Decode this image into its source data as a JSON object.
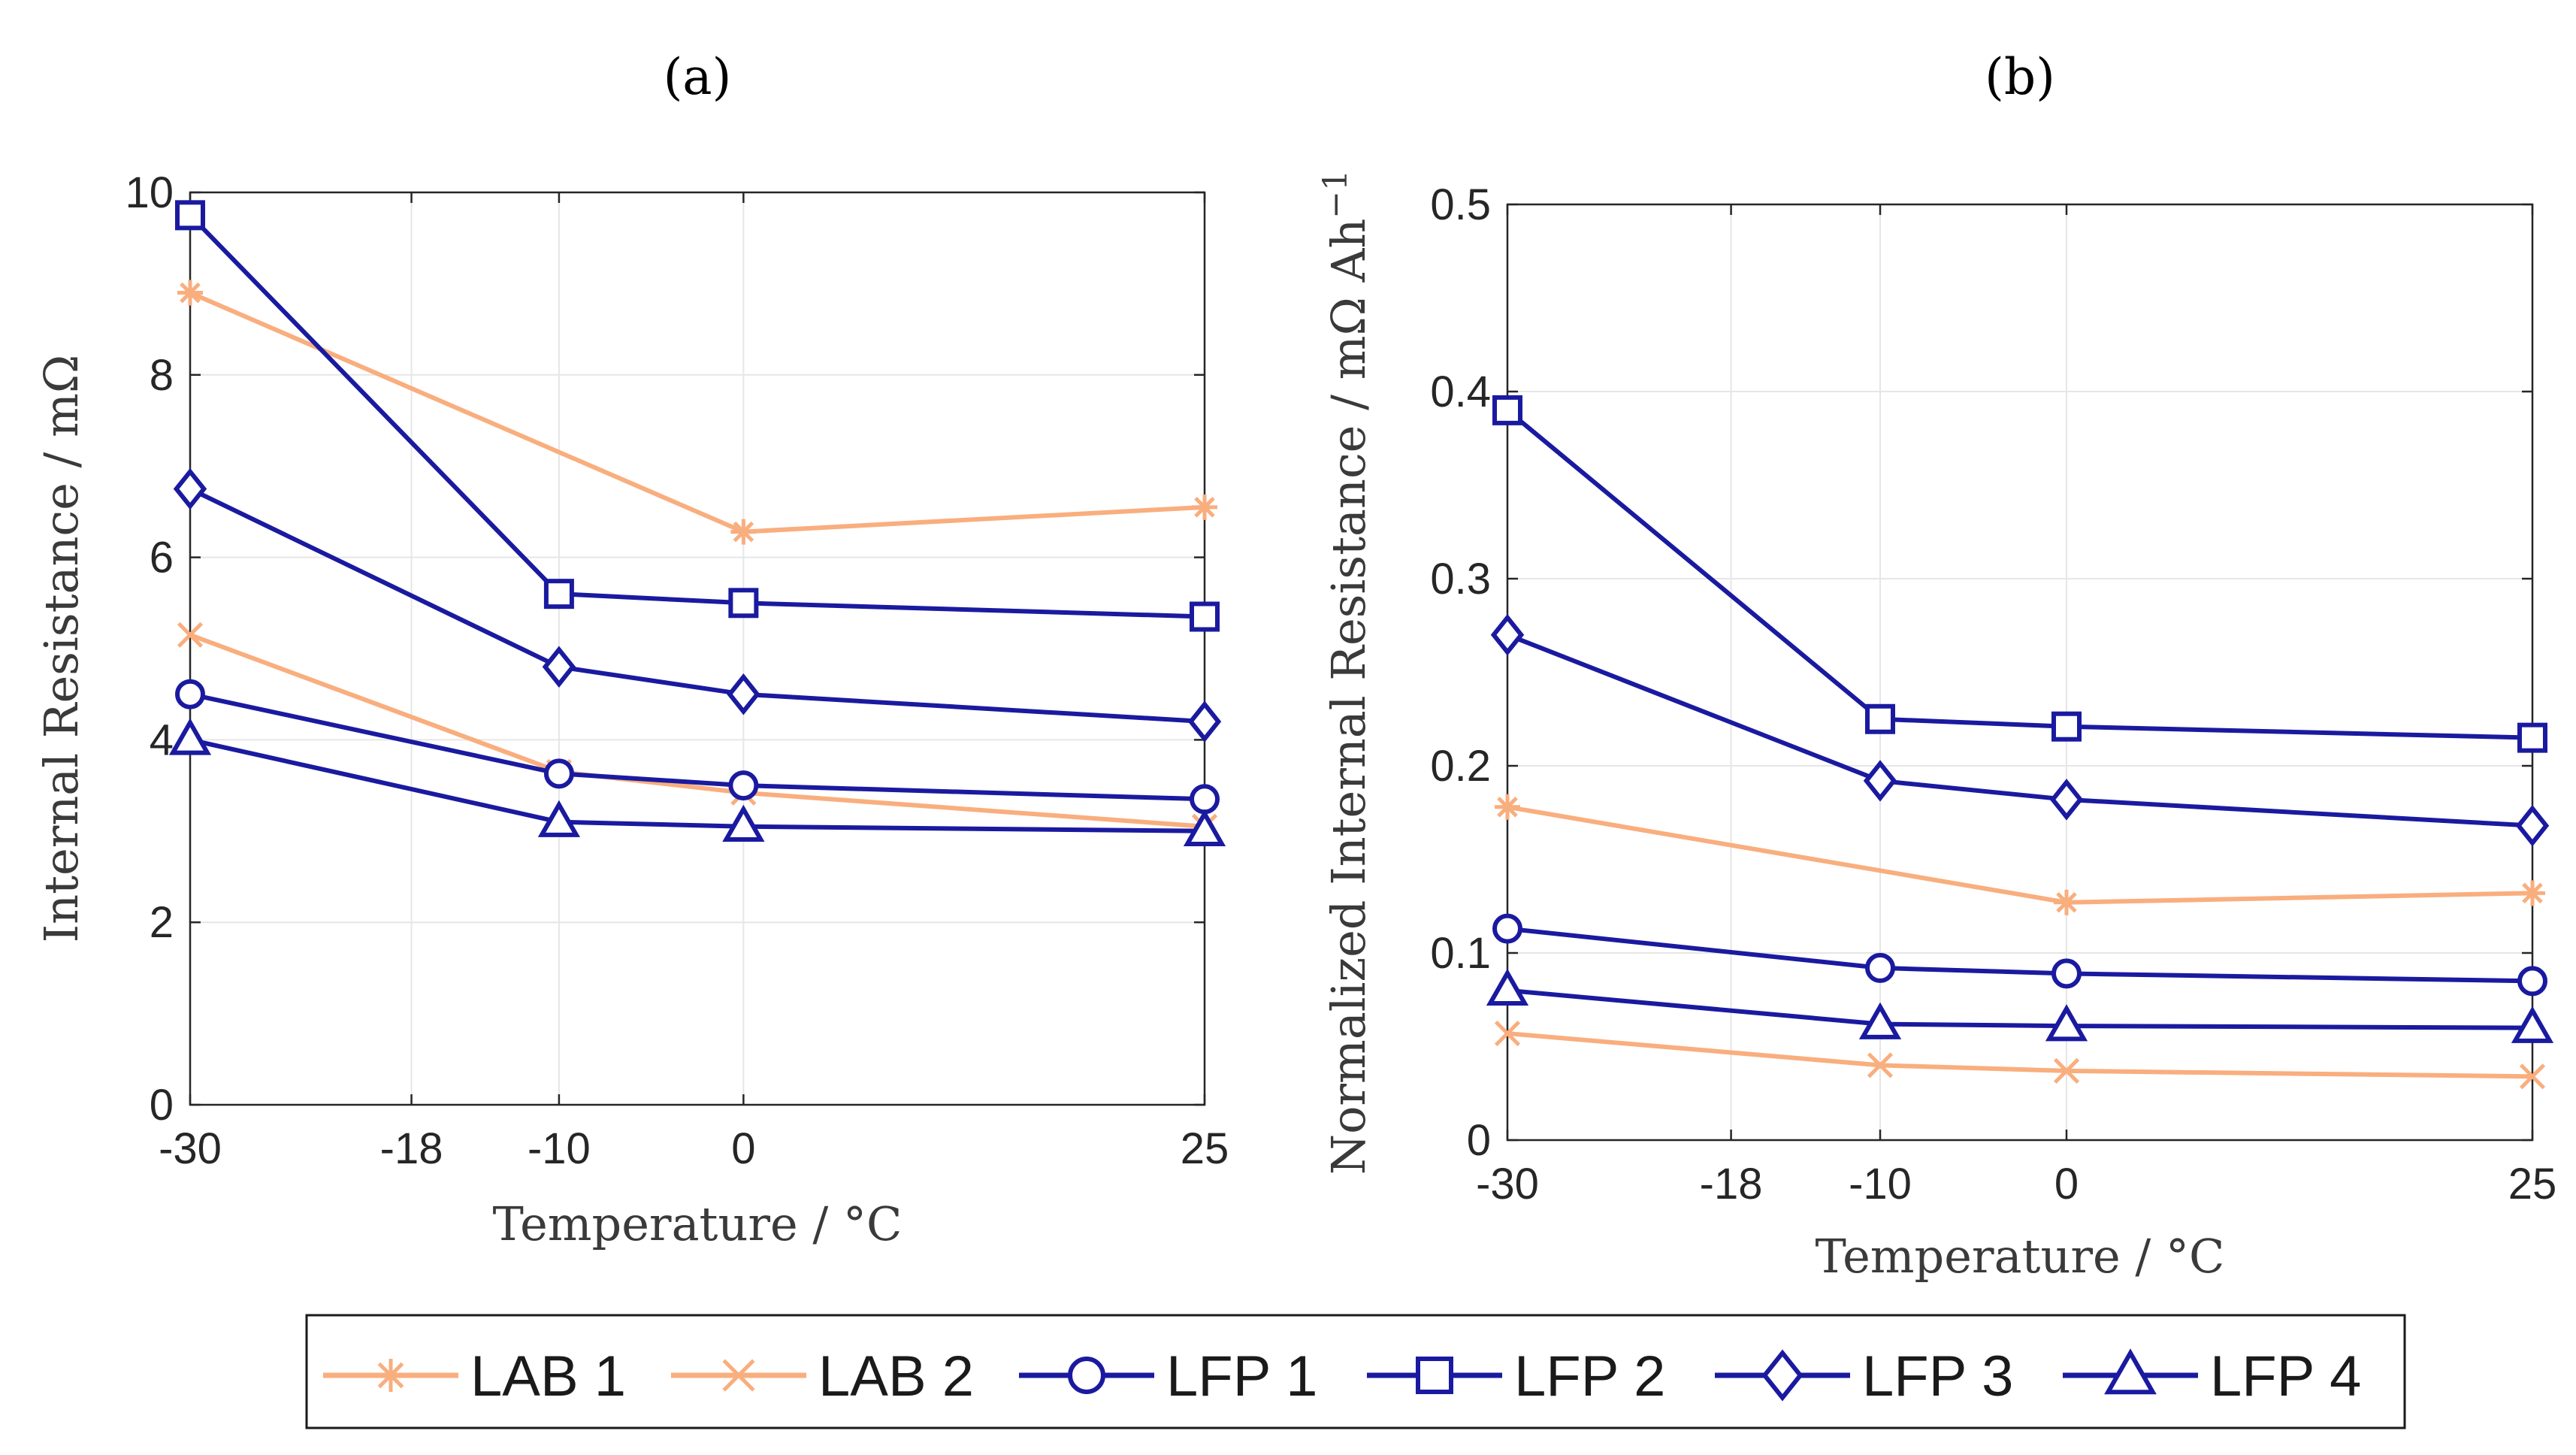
{
  "colors": {
    "lab": "#F9AE7E",
    "lfp": "#1A1AA0",
    "axis": "#262626",
    "grid": "#e6e6e6"
  },
  "chart_data": [
    {
      "panel_label": "(a)",
      "type": "line",
      "xlabel": "Temperature / °C",
      "ylabel": "Internal Resistance / mΩ",
      "xlim": [
        -30,
        25
      ],
      "ylim": [
        0,
        10
      ],
      "xticks": [
        -30,
        -18,
        -10,
        0,
        25
      ],
      "yticks": [
        0,
        2,
        4,
        6,
        8,
        10
      ],
      "x": [
        -30,
        -10,
        0,
        25
      ],
      "series": [
        {
          "name": "LAB 1",
          "values": [
            8.9,
            null,
            6.28,
            6.55
          ],
          "color": "lab",
          "marker": "asterisk"
        },
        {
          "name": "LAB 2",
          "values": [
            5.15,
            3.65,
            3.42,
            3.05
          ],
          "color": "lab",
          "marker": "x"
        },
        {
          "name": "LFP 1",
          "values": [
            4.5,
            3.63,
            3.5,
            3.35
          ],
          "color": "lfp",
          "marker": "circle"
        },
        {
          "name": "LFP 2",
          "values": [
            9.75,
            5.6,
            5.5,
            5.35
          ],
          "color": "lfp",
          "marker": "square"
        },
        {
          "name": "LFP 3",
          "values": [
            6.75,
            4.8,
            4.5,
            4.2
          ],
          "color": "lfp",
          "marker": "diamond"
        },
        {
          "name": "LFP 4",
          "values": [
            4.0,
            3.1,
            3.05,
            3.0
          ],
          "color": "lfp",
          "marker": "triangle"
        }
      ]
    },
    {
      "panel_label": "(b)",
      "type": "line",
      "xlabel": "Temperature / °C",
      "ylabel": "Normalized Internal Resistance / mΩ Ah",
      "ylabel_sup": "−1",
      "xlim": [
        -30,
        25
      ],
      "ylim": [
        0,
        0.5
      ],
      "xticks": [
        -30,
        -18,
        -10,
        0,
        25
      ],
      "yticks": [
        0,
        0.1,
        0.2,
        0.3,
        0.4,
        0.5
      ],
      "x": [
        -30,
        -10,
        0,
        25
      ],
      "series": [
        {
          "name": "LAB 1",
          "values": [
            0.178,
            null,
            0.127,
            0.132
          ],
          "color": "lab",
          "marker": "asterisk"
        },
        {
          "name": "LAB 2",
          "values": [
            0.057,
            0.04,
            0.037,
            0.034
          ],
          "color": "lab",
          "marker": "x"
        },
        {
          "name": "LFP 1",
          "values": [
            0.113,
            0.092,
            0.089,
            0.085
          ],
          "color": "lfp",
          "marker": "circle"
        },
        {
          "name": "LFP 2",
          "values": [
            0.39,
            0.225,
            0.221,
            0.215
          ],
          "color": "lfp",
          "marker": "square"
        },
        {
          "name": "LFP 3",
          "values": [
            0.27,
            0.192,
            0.182,
            0.168
          ],
          "color": "lfp",
          "marker": "diamond"
        },
        {
          "name": "LFP 4",
          "values": [
            0.08,
            0.062,
            0.061,
            0.06
          ],
          "color": "lfp",
          "marker": "triangle"
        }
      ]
    }
  ],
  "legend": [
    {
      "label": "LAB 1",
      "color": "lab",
      "marker": "asterisk"
    },
    {
      "label": "LAB 2",
      "color": "lab",
      "marker": "x"
    },
    {
      "label": "LFP 1",
      "color": "lfp",
      "marker": "circle"
    },
    {
      "label": "LFP 2",
      "color": "lfp",
      "marker": "square"
    },
    {
      "label": "LFP 3",
      "color": "lfp",
      "marker": "diamond"
    },
    {
      "label": "LFP 4",
      "color": "lfp",
      "marker": "triangle"
    }
  ]
}
